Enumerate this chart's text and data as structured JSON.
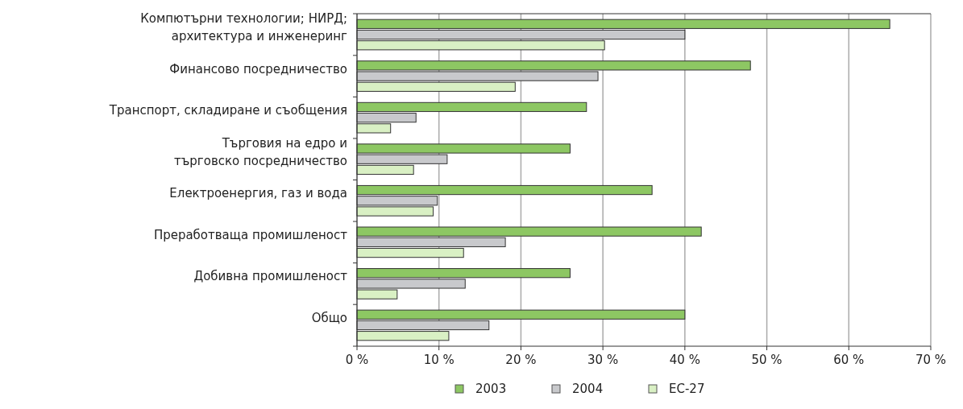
{
  "chart_data": {
    "type": "bar",
    "orientation": "horizontal",
    "categories": [
      "Компютърни технологии; НИРД; архитектура и инженеринг",
      "Финансово посредничество",
      "Транспорт, складиране и съобщения",
      "Търговия на едро и търговско посредничество",
      "Електроенергия, газ и вода",
      "Преработваща промишленост",
      "Добивна промишленост",
      "Общо"
    ],
    "series": [
      {
        "name": "2003",
        "color": "#8dc763",
        "values": [
          65,
          48,
          28,
          26,
          36,
          42,
          26,
          40
        ]
      },
      {
        "name": "2004",
        "color": "#c8c9cc",
        "values": [
          40,
          29.4,
          7.2,
          11,
          9.8,
          18.1,
          13.2,
          16.1
        ]
      },
      {
        "name": "ЕС-27",
        "color": "#d9f0c4",
        "values": [
          30.2,
          19.3,
          4.1,
          6.9,
          9.3,
          13,
          4.9,
          11.2
        ]
      }
    ],
    "xlim": [
      0,
      70
    ],
    "xticks": [
      {
        "value": 0,
        "label": "0 %"
      },
      {
        "value": 10,
        "label": "10 %"
      },
      {
        "value": 20,
        "label": "20 %"
      },
      {
        "value": 30,
        "label": "30 %"
      },
      {
        "value": 40,
        "label": "40 %"
      },
      {
        "value": 50,
        "label": "50 %"
      },
      {
        "value": 60,
        "label": "60 %"
      },
      {
        "value": 70,
        "label": "70 %"
      }
    ],
    "grid": "x",
    "legend": "bottom"
  }
}
